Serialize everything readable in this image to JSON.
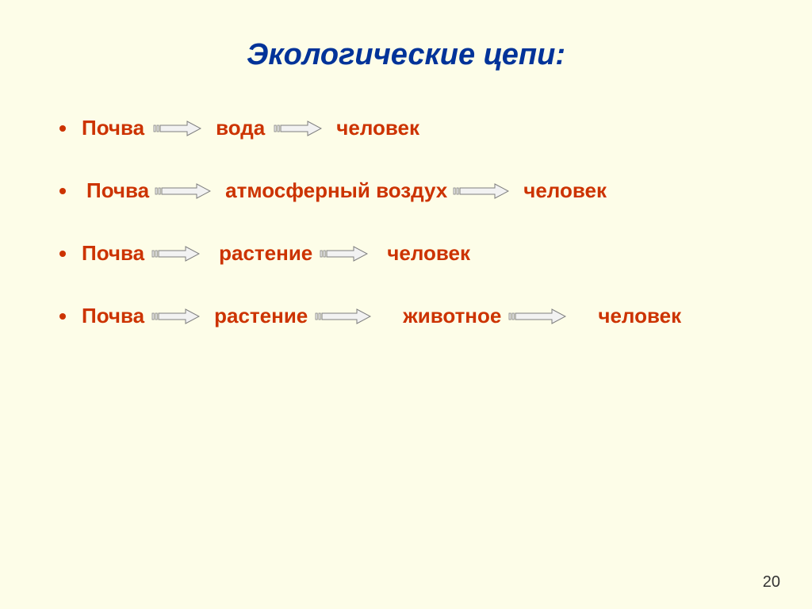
{
  "title": "Экологические цепи:",
  "page_number": "20",
  "text_color": "#cc3300",
  "title_color": "#003399",
  "bg_color": "#fdfde8",
  "arrow_fill": "#f2f2f2",
  "arrow_stroke": "#7f7f7f",
  "bullet_color": "#cc3300",
  "chains": [
    {
      "items": [
        "Почва",
        "вода",
        "человек"
      ],
      "gaps_before_arrow": [
        0,
        18,
        18
      ],
      "gaps_after_arrow": [
        10,
        10
      ],
      "arrow_widths": [
        62,
        62
      ]
    },
    {
      "items": [
        "Почва",
        "атмосферный воздух",
        "человек"
      ],
      "gaps_before_arrow": [
        6,
        18,
        18
      ],
      "gaps_after_arrow": [
        6,
        6
      ],
      "arrow_widths": [
        72,
        72
      ]
    },
    {
      "items": [
        "Почва",
        "растение",
        "человек"
      ],
      "gaps_before_arrow": [
        0,
        24,
        24
      ],
      "gaps_after_arrow": [
        8,
        8
      ],
      "arrow_widths": [
        62,
        62
      ]
    },
    {
      "items": [
        "Почва",
        "растение",
        "животное",
        "человек"
      ],
      "gaps_before_arrow": [
        0,
        18,
        40,
        40
      ],
      "gaps_after_arrow": [
        8,
        8,
        8
      ],
      "arrow_widths": [
        62,
        72,
        74
      ]
    }
  ]
}
